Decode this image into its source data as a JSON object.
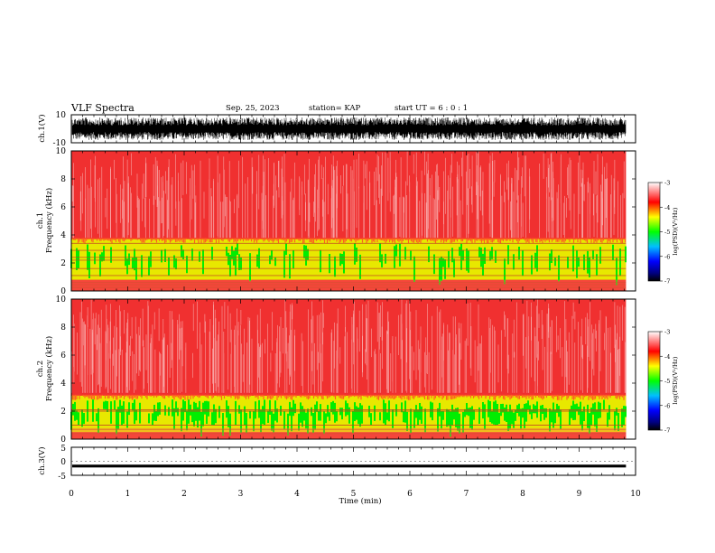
{
  "header": {
    "title": "VLF Spectra",
    "date": "Sep. 25, 2023",
    "station": "station= KAP",
    "start": "start  UT =   6 : 0  : 1"
  },
  "colors": {
    "line": "#000000",
    "spectrogram_background": "#f03030",
    "spectrogram_speckle": "#ffffff",
    "band_low": "#e8e800",
    "band_mid": "#00ee00",
    "harmonic_lines": "#c04020"
  },
  "chart_data": [
    {
      "id": "ch1-waveform",
      "type": "line",
      "ylabel": "ch.1(V)",
      "ylim": [
        -10,
        10
      ],
      "yticks": [
        "10",
        "-10"
      ],
      "xlim": [
        0,
        10
      ],
      "description_values": {
        "signal_amplitude_range": [
          -8,
          8
        ],
        "data_end_min": 9.83
      }
    },
    {
      "id": "ch1-spectrogram",
      "type": "heatmap",
      "ylabel_line1": "ch.1",
      "ylabel_line2": "Frequency (kHz)",
      "ylim": [
        0,
        10
      ],
      "yticks": [
        "0",
        "2",
        "4",
        "6",
        "8",
        "10"
      ],
      "xlim": [
        0,
        10
      ],
      "data_end_min": 9.83,
      "bands_khz": {
        "high_noise": [
          3.8,
          10
        ],
        "active": [
          0.8,
          3.7
        ]
      },
      "line_frequencies_khz": [
        0.25,
        0.45,
        0.6,
        1.1,
        1.6,
        2.2,
        2.4,
        2.9,
        3.4
      ],
      "colorbar": {
        "label": "log(PSD)(V²/Hz)",
        "ticks": [
          "-3",
          "-4",
          "-5",
          "-6",
          "-7"
        ],
        "range": [
          -7,
          -3
        ]
      }
    },
    {
      "id": "ch2-spectrogram",
      "type": "heatmap",
      "ylabel_line1": "ch.2",
      "ylabel_line2": "Frequency (kHz)",
      "ylim": [
        0,
        10
      ],
      "yticks": [
        "0",
        "2",
        "4",
        "6",
        "8",
        "10"
      ],
      "xlim": [
        0,
        10
      ],
      "data_end_min": 9.83,
      "bands_khz": {
        "high_noise": [
          3.3,
          10
        ],
        "active": [
          0.5,
          3.1
        ]
      },
      "line_frequencies_khz": [
        0.4,
        0.7,
        1.0,
        2.0,
        2.1
      ],
      "colorbar": {
        "label": "log(PSD)(V²/Hz)",
        "ticks": [
          "-3",
          "-4",
          "-5",
          "-6",
          "-7"
        ],
        "range": [
          -7,
          -3
        ]
      }
    },
    {
      "id": "ch3-waveform",
      "type": "line",
      "ylabel": "ch.3(V)",
      "ylim": [
        -5,
        5
      ],
      "yticks": [
        "5",
        "0",
        "-5"
      ],
      "xlim": [
        0,
        10
      ],
      "description_values": {
        "signal_amplitude_range": [
          -2.2,
          -1.2
        ],
        "data_end_min": 9.83
      }
    }
  ],
  "time_axis": {
    "xlabel": "Time (min)",
    "ticks": [
      "0",
      "1",
      "2",
      "3",
      "4",
      "5",
      "6",
      "7",
      "8",
      "9",
      "10"
    ],
    "range": [
      0,
      10
    ]
  }
}
